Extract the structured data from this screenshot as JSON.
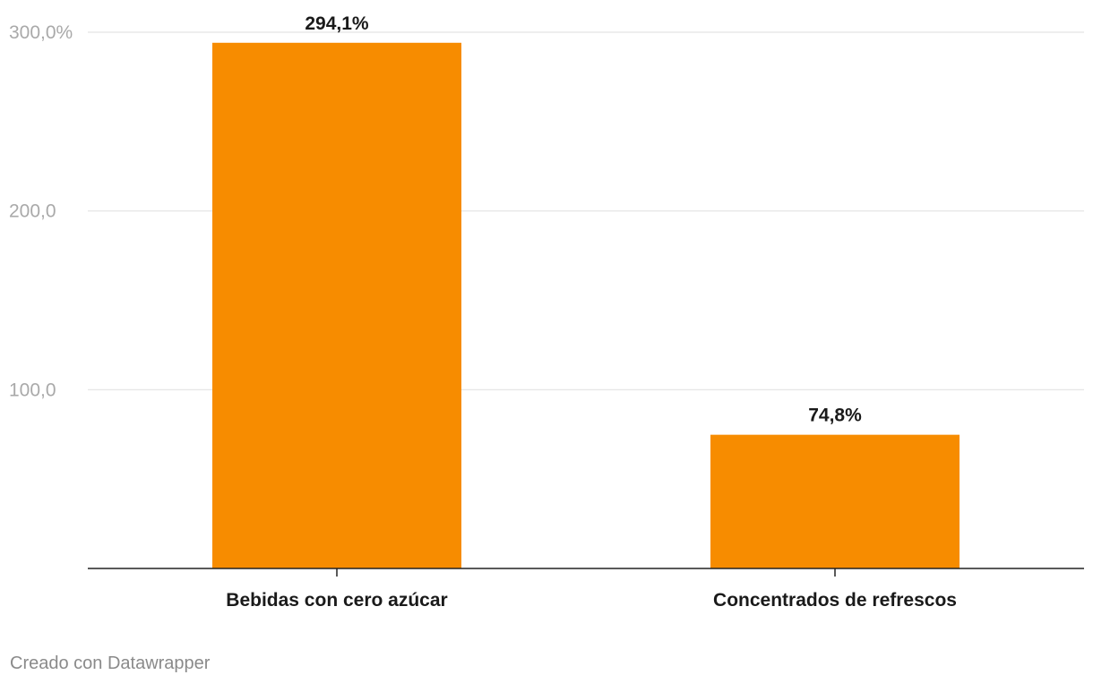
{
  "chart_data": {
    "type": "bar",
    "categories": [
      "Bebidas con cero azúcar",
      "Concentrados de refrescos"
    ],
    "values": [
      294.1,
      74.8
    ],
    "value_labels": [
      "294,1%",
      "74,8%"
    ],
    "title": "",
    "xlabel": "",
    "ylabel": "",
    "ylim": [
      0,
      300
    ],
    "y_ticks": [
      100,
      200,
      300
    ],
    "y_tick_labels": [
      "100,0",
      "200,0",
      "300,0%"
    ],
    "grid": true,
    "legend": "none",
    "bar_color": "#f78c00"
  },
  "footer": {
    "credit": "Creado con Datawrapper"
  }
}
